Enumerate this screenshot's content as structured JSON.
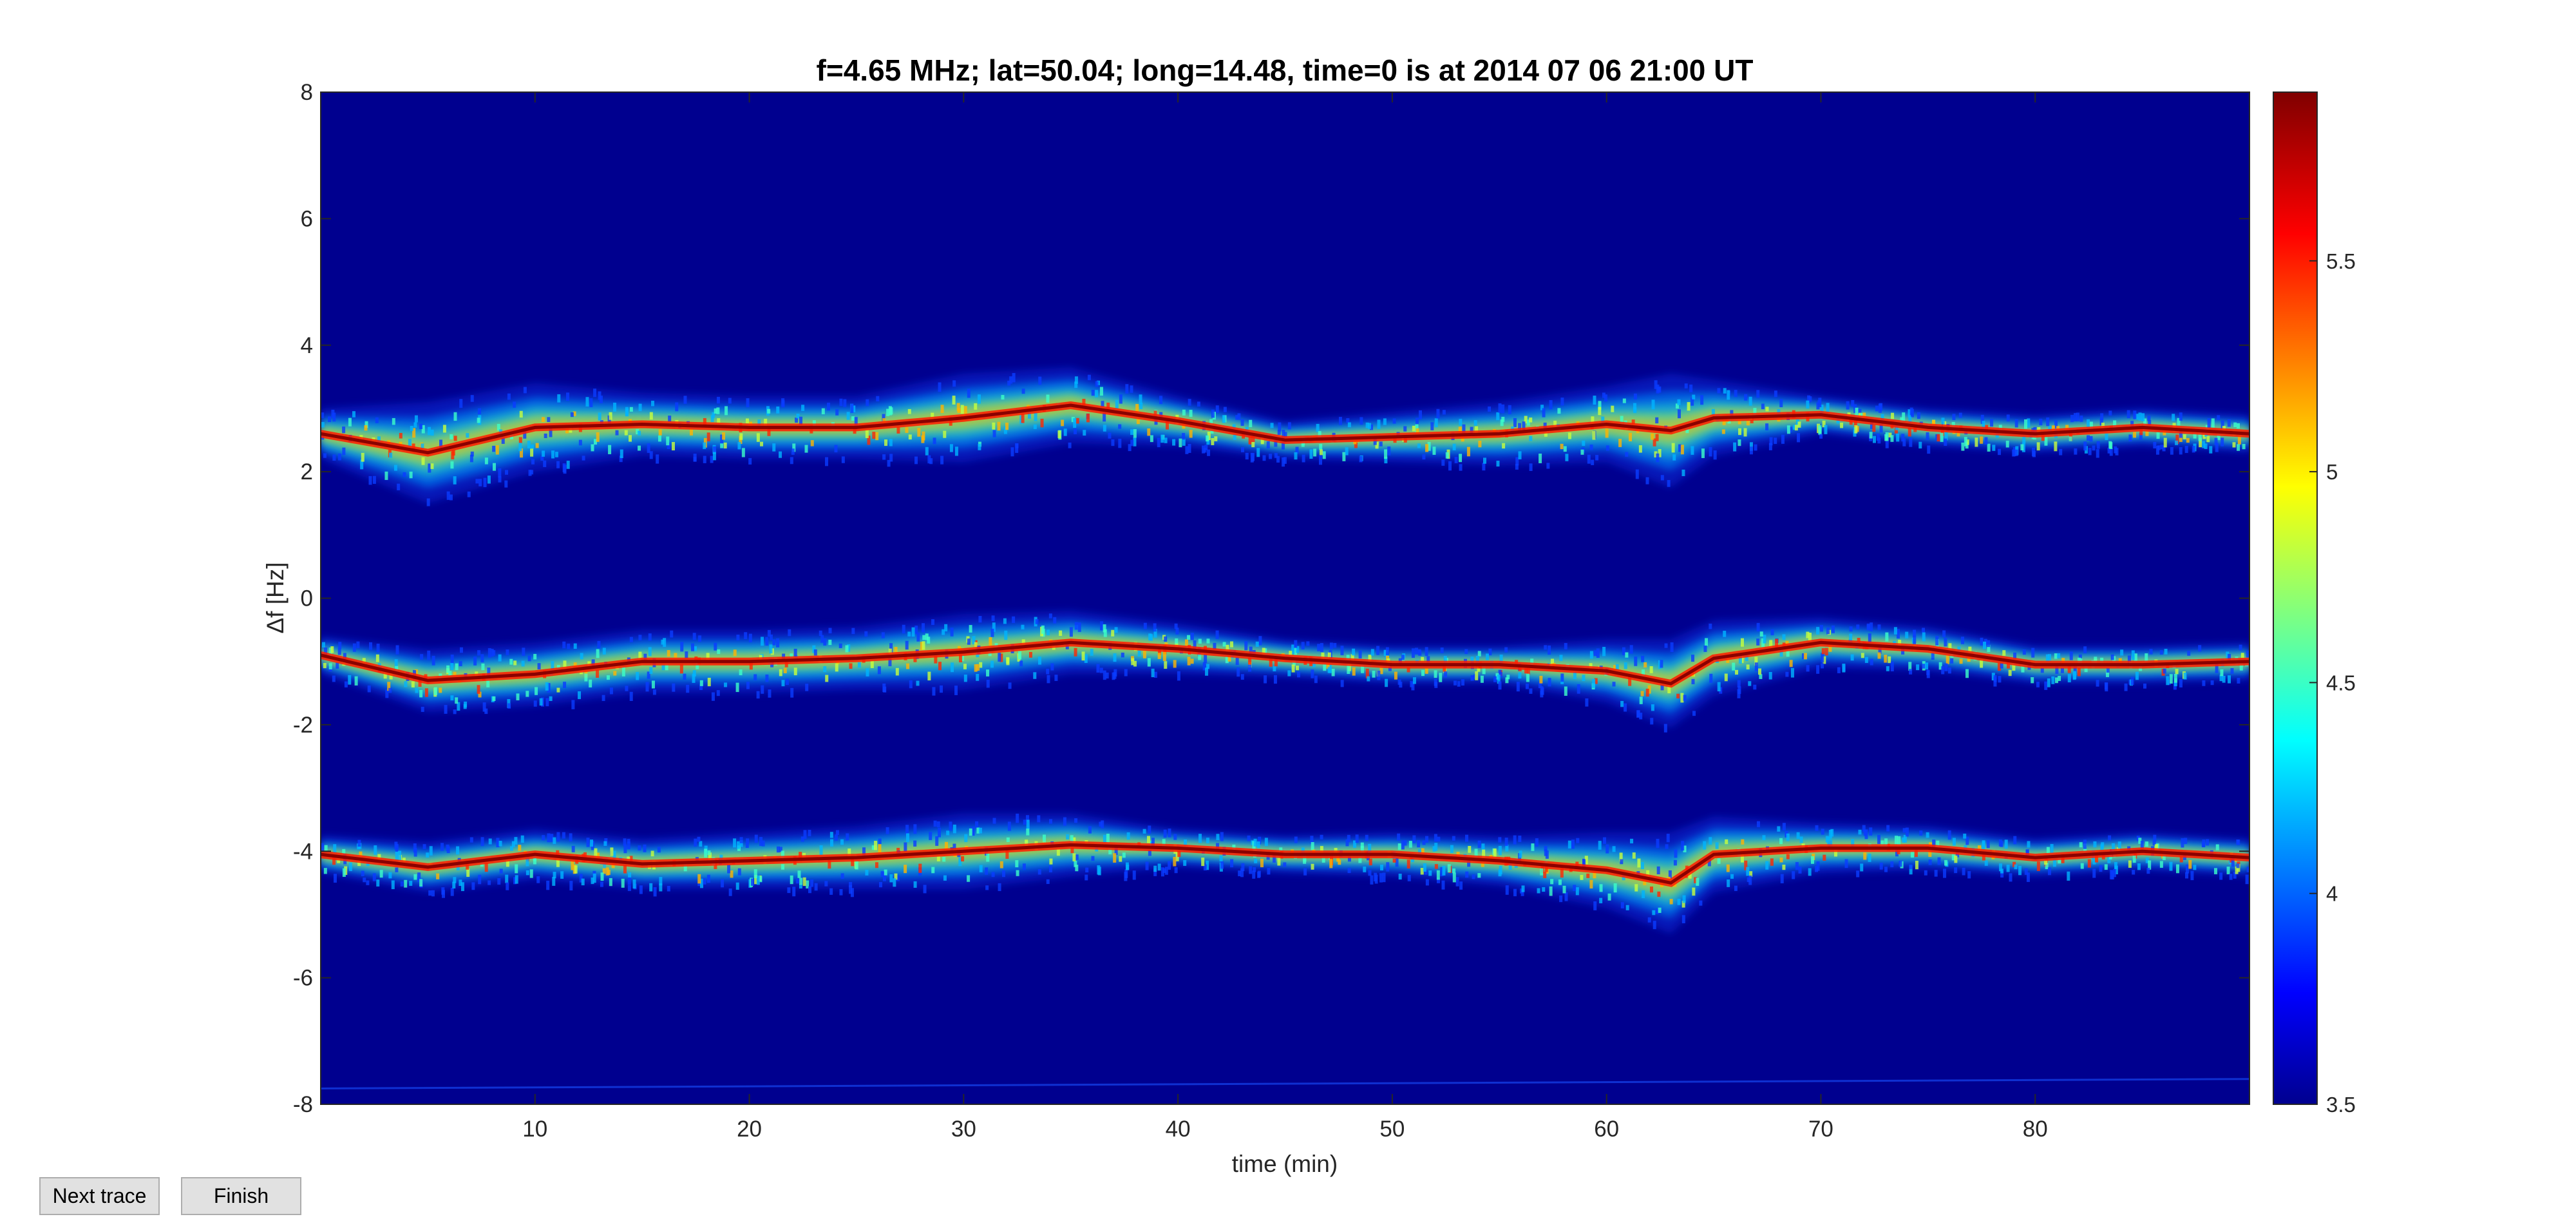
{
  "buttons": {
    "next_trace": "Next trace",
    "finish": "Finish"
  },
  "colors": {
    "background_field": "#00008f",
    "trace_line": "#8b0000",
    "button_face": "#e1e1e1"
  },
  "chart_data": {
    "type": "heatmap",
    "title": "f=4.65 MHz;  lat=50.04; long=14.48, time=0 is at 2014 07 06 21:00 UT",
    "xlabel": "time (min)",
    "ylabel": "Δf [Hz]",
    "xlim": [
      0,
      90
    ],
    "ylim": [
      -8,
      8
    ],
    "xticks": [
      10,
      20,
      30,
      40,
      50,
      60,
      70,
      80
    ],
    "yticks": [
      8,
      6,
      4,
      2,
      0,
      -2,
      -4,
      -6,
      -8
    ],
    "grid": false,
    "colormap": "jet",
    "colorbar": {
      "clim": [
        3.5,
        5.9
      ],
      "ticks": [
        3.5,
        4,
        4.5,
        5,
        5.5
      ]
    },
    "series": [
      {
        "x": [
          0,
          5,
          10,
          15,
          20,
          25,
          30,
          35,
          40,
          45,
          50,
          55,
          60,
          63,
          65,
          70,
          75,
          80,
          85,
          90
        ],
        "y": [
          2.6,
          2.3,
          2.7,
          2.75,
          2.7,
          2.7,
          2.85,
          3.05,
          2.8,
          2.5,
          2.55,
          2.6,
          2.75,
          2.65,
          2.85,
          2.9,
          2.7,
          2.6,
          2.7,
          2.6
        ]
      },
      {
        "x": [
          0,
          5,
          10,
          15,
          20,
          25,
          30,
          35,
          40,
          45,
          50,
          55,
          60,
          63,
          65,
          70,
          75,
          80,
          85,
          90
        ],
        "y": [
          -0.9,
          -1.3,
          -1.2,
          -1.0,
          -1.0,
          -0.95,
          -0.85,
          -0.7,
          -0.8,
          -0.95,
          -1.05,
          -1.05,
          -1.15,
          -1.35,
          -0.95,
          -0.7,
          -0.8,
          -1.05,
          -1.05,
          -1.0
        ]
      },
      {
        "x": [
          0,
          5,
          10,
          15,
          20,
          25,
          30,
          35,
          40,
          45,
          50,
          55,
          60,
          63,
          65,
          70,
          75,
          80,
          85,
          90
        ],
        "y": [
          -4.05,
          -4.25,
          -4.05,
          -4.2,
          -4.15,
          -4.1,
          -4.0,
          -3.9,
          -3.95,
          -4.05,
          -4.05,
          -4.15,
          -4.3,
          -4.5,
          -4.05,
          -3.95,
          -3.95,
          -4.1,
          -4.0,
          -4.1
        ]
      }
    ],
    "intensity_bands": [
      {
        "x": [
          0,
          5,
          10,
          15,
          25,
          30,
          35,
          40,
          45,
          55,
          60,
          63,
          65,
          70,
          80,
          90
        ],
        "spread": [
          0.4,
          0.8,
          0.7,
          0.5,
          0.5,
          0.7,
          0.6,
          0.4,
          0.3,
          0.5,
          0.6,
          0.9,
          0.6,
          0.3,
          0.3,
          0.3
        ]
      },
      {
        "x": [
          0,
          5,
          10,
          15,
          25,
          30,
          35,
          40,
          45,
          55,
          60,
          63,
          65,
          70,
          80,
          90
        ],
        "spread": [
          0.3,
          0.5,
          0.5,
          0.5,
          0.5,
          0.6,
          0.5,
          0.4,
          0.3,
          0.3,
          0.5,
          0.7,
          0.6,
          0.4,
          0.3,
          0.3
        ]
      },
      {
        "x": [
          0,
          5,
          10,
          15,
          25,
          30,
          35,
          40,
          45,
          55,
          60,
          63,
          65,
          70,
          80,
          90
        ],
        "spread": [
          0.3,
          0.4,
          0.4,
          0.4,
          0.5,
          0.6,
          0.5,
          0.3,
          0.3,
          0.4,
          0.6,
          0.8,
          0.6,
          0.4,
          0.3,
          0.3
        ]
      }
    ],
    "faint_line_y": -7.75
  }
}
